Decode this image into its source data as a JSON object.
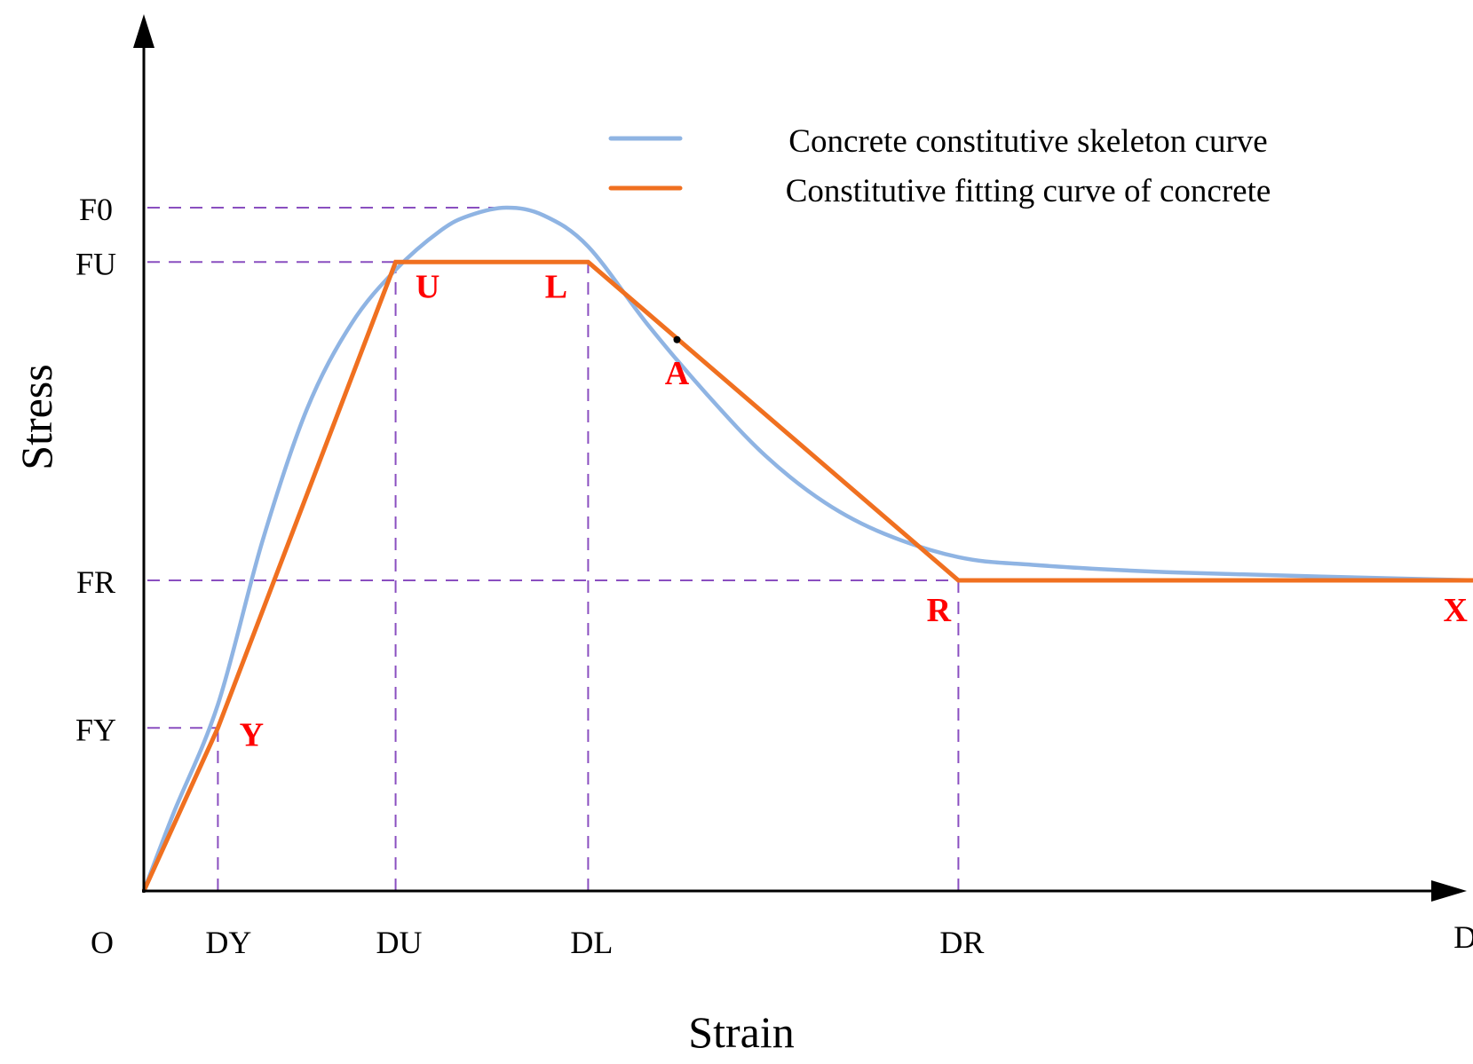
{
  "colors": {
    "skeleton": "#8fb4e3",
    "fitting": "#f07020",
    "guide": "#8a4fc0",
    "point_label": "#ff0000",
    "axis": "#000000"
  },
  "chart_data": {
    "type": "line",
    "xlabel": "Strain",
    "ylabel": "Stress",
    "origin_label": "O",
    "x_ticks": [
      {
        "key": "DY",
        "label": "DY",
        "value": 0.05
      },
      {
        "key": "DU",
        "label": "DU",
        "value": 0.17
      },
      {
        "key": "DL",
        "label": "DL",
        "value": 0.3
      },
      {
        "key": "DR",
        "label": "DR",
        "value": 0.55
      },
      {
        "key": "DX",
        "label": "DX",
        "value": 0.9
      }
    ],
    "y_ticks": [
      {
        "key": "FY",
        "label": "FY",
        "value": 0.21
      },
      {
        "key": "FR",
        "label": "FR",
        "value": 0.4
      },
      {
        "key": "FU",
        "label": "FU",
        "value": 0.81
      },
      {
        "key": "F0",
        "label": "F0",
        "value": 0.88
      }
    ],
    "series": [
      {
        "name": "Concrete constitutive skeleton curve",
        "points": [
          [
            0,
            0
          ],
          [
            0.02,
            0.1
          ],
          [
            0.05,
            0.24
          ],
          [
            0.08,
            0.45
          ],
          [
            0.11,
            0.62
          ],
          [
            0.14,
            0.73
          ],
          [
            0.17,
            0.8
          ],
          [
            0.2,
            0.85
          ],
          [
            0.22,
            0.87
          ],
          [
            0.245,
            0.88
          ],
          [
            0.27,
            0.87
          ],
          [
            0.3,
            0.83
          ],
          [
            0.34,
            0.73
          ],
          [
            0.38,
            0.64
          ],
          [
            0.42,
            0.56
          ],
          [
            0.46,
            0.5
          ],
          [
            0.5,
            0.46
          ],
          [
            0.55,
            0.43
          ],
          [
            0.6,
            0.42
          ],
          [
            0.7,
            0.41
          ],
          [
            0.9,
            0.4
          ]
        ]
      },
      {
        "name": "Constitutive fitting curve of concrete",
        "points": [
          [
            0,
            0
          ],
          [
            0.05,
            0.21
          ],
          [
            0.17,
            0.81
          ],
          [
            0.3,
            0.81
          ],
          [
            0.55,
            0.4
          ],
          [
            0.9,
            0.4
          ]
        ]
      }
    ],
    "point_labels": [
      {
        "key": "Y",
        "label": "Y",
        "x": 0.05,
        "y": 0.21
      },
      {
        "key": "U",
        "label": "U",
        "x": 0.17,
        "y": 0.81
      },
      {
        "key": "L",
        "label": "L",
        "x": 0.3,
        "y": 0.81
      },
      {
        "key": "A",
        "label": "A",
        "x": 0.36,
        "y": 0.71
      },
      {
        "key": "R",
        "label": "R",
        "x": 0.55,
        "y": 0.4
      },
      {
        "key": "X",
        "label": "X",
        "x": 0.9,
        "y": 0.4
      }
    ],
    "legend": {
      "position": "top-right",
      "entries": [
        {
          "label": "Concrete constitutive skeleton curve",
          "series": "skeleton"
        },
        {
          "label": "Constitutive fitting curve of concrete",
          "series": "fitting"
        }
      ]
    }
  }
}
